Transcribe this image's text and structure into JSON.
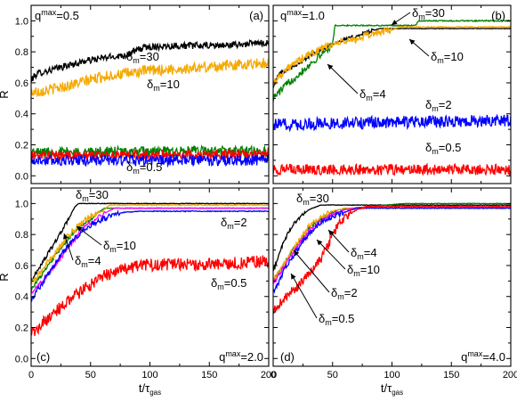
{
  "chart_data": [
    {
      "panel_label": "(a)",
      "qmax_label": {
        "base": "q",
        "sup": "max",
        "tail": "=0.5"
      },
      "type": "line",
      "ylabel": "R̃",
      "xlabel": "",
      "xlim": [
        0,
        200
      ],
      "ylim": [
        -0.05,
        1.1
      ],
      "xticks": [
        0,
        50,
        100,
        150,
        200
      ],
      "xtick_labels": [
        "",
        "",
        "",
        "",
        ""
      ],
      "yticks": [
        0.0,
        0.2,
        0.4,
        0.6,
        0.8,
        1.0
      ],
      "ytick_labels": [
        "0.0",
        "0.2",
        "0.4",
        "0.6",
        "0.8",
        "1.0"
      ],
      "series": [
        {
          "name": "δm=30",
          "color": "#000000",
          "noise": 0.022,
          "points": [
            [
              0,
              0.62
            ],
            [
              5,
              0.66
            ],
            [
              15,
              0.68
            ],
            [
              30,
              0.71
            ],
            [
              45,
              0.74
            ],
            [
              60,
              0.76
            ],
            [
              80,
              0.78
            ],
            [
              95,
              0.83
            ],
            [
              120,
              0.84
            ],
            [
              160,
              0.84
            ],
            [
              200,
              0.86
            ]
          ]
        },
        {
          "name": "δm=10",
          "color": "#f5a900",
          "noise": 0.035,
          "points": [
            [
              0,
              0.54
            ],
            [
              10,
              0.55
            ],
            [
              25,
              0.57
            ],
            [
              40,
              0.6
            ],
            [
              60,
              0.64
            ],
            [
              80,
              0.66
            ],
            [
              100,
              0.68
            ],
            [
              130,
              0.69
            ],
            [
              160,
              0.71
            ],
            [
              200,
              0.73
            ]
          ]
        },
        {
          "name": "",
          "color": "#008000",
          "noise": 0.035,
          "points": [
            [
              0,
              0.15
            ],
            [
              200,
              0.16
            ]
          ]
        },
        {
          "name": "",
          "color": "#ff0000",
          "noise": 0.03,
          "points": [
            [
              0,
              0.13
            ],
            [
              200,
              0.14
            ]
          ]
        },
        {
          "name": "δm=0.5",
          "color": "#0000ff",
          "noise": 0.035,
          "points": [
            [
              0,
              0.1
            ],
            [
              200,
              0.1
            ]
          ]
        }
      ],
      "annotations": [
        {
          "sub": "m",
          "value": "=30"
        },
        {
          "sub": "m",
          "value": "=10"
        },
        {
          "sub": "m",
          "value": "=0.5"
        }
      ]
    },
    {
      "panel_label": "(b)",
      "qmax_label": {
        "base": "q",
        "sup": "max",
        "tail": "=1.0"
      },
      "type": "line",
      "ylabel": "",
      "xlabel": "",
      "xlim": [
        0,
        200
      ],
      "ylim": [
        -0.05,
        1.1
      ],
      "xticks": [
        0,
        50,
        100,
        150,
        200
      ],
      "xtick_labels": [
        "",
        "",
        "",
        "",
        ""
      ],
      "yticks": [
        0.0,
        0.2,
        0.4,
        0.6,
        0.8,
        1.0
      ],
      "ytick_labels": [
        "",
        "",
        "",
        "",
        "",
        ""
      ],
      "series": [
        {
          "name": "δm=30",
          "color": "#000000",
          "noise": 0.012,
          "points": [
            [
              0,
              0.58
            ],
            [
              5,
              0.66
            ],
            [
              15,
              0.7
            ],
            [
              25,
              0.74
            ],
            [
              35,
              0.8
            ],
            [
              45,
              0.83
            ],
            [
              55,
              0.87
            ],
            [
              70,
              0.9
            ],
            [
              80,
              0.93
            ],
            [
              90,
              0.95
            ],
            [
              200,
              0.95
            ]
          ]
        },
        {
          "name": "",
          "color": "#008000",
          "noise": 0.025,
          "points": [
            [
              0,
              0.5
            ],
            [
              10,
              0.58
            ],
            [
              25,
              0.68
            ],
            [
              40,
              0.78
            ],
            [
              50,
              0.85
            ],
            [
              52,
              0.97
            ],
            [
              120,
              0.97
            ],
            [
              122,
              1.0
            ],
            [
              200,
              1.0
            ]
          ]
        },
        {
          "name": "δm=10",
          "color": "#f5a900",
          "noise": 0.025,
          "points": [
            [
              0,
              0.6
            ],
            [
              10,
              0.68
            ],
            [
              25,
              0.76
            ],
            [
              40,
              0.82
            ],
            [
              55,
              0.86
            ],
            [
              70,
              0.88
            ],
            [
              85,
              0.92
            ],
            [
              100,
              0.94
            ],
            [
              106,
              0.96
            ],
            [
              200,
              0.96
            ]
          ]
        },
        {
          "name": "δm=2",
          "color": "#0000ff",
          "noise": 0.04,
          "points": [
            [
              0,
              0.33
            ],
            [
              60,
              0.34
            ],
            [
              140,
              0.35
            ],
            [
              200,
              0.36
            ]
          ]
        },
        {
          "name": "δm=0.5",
          "color": "#ff0000",
          "noise": 0.035,
          "points": [
            [
              0,
              0.04
            ],
            [
              200,
              0.04
            ]
          ]
        }
      ],
      "annotations": [
        {
          "sub": "m",
          "value": "=30"
        },
        {
          "sub": "m",
          "value": "=4"
        },
        {
          "sub": "m",
          "value": "=10"
        },
        {
          "sub": "m",
          "value": "=2"
        },
        {
          "sub": "m",
          "value": "=0.5"
        }
      ]
    },
    {
      "panel_label": "(c)",
      "qmax_label": {
        "base": "q",
        "sup": "max",
        "tail": "=2.0"
      },
      "type": "line",
      "ylabel": "R̃",
      "xlabel": "",
      "xlim": [
        0,
        200
      ],
      "ylim": [
        -0.05,
        1.1
      ],
      "xticks": [
        0,
        50,
        100,
        150,
        200
      ],
      "xtick_labels": [
        "0",
        "50",
        "100",
        "150",
        "200"
      ],
      "yticks": [
        0.0,
        0.2,
        0.4,
        0.6,
        0.8,
        1.0
      ],
      "ytick_labels": [
        "0.0",
        "0.2",
        "0.4",
        "0.6",
        "0.8",
        "1.0"
      ],
      "series": [
        {
          "name": "δm=30",
          "color": "#000000",
          "noise": 0.012,
          "points": [
            [
              0,
              0.5
            ],
            [
              8,
              0.6
            ],
            [
              16,
              0.7
            ],
            [
              24,
              0.8
            ],
            [
              30,
              0.88
            ],
            [
              34,
              0.94
            ],
            [
              37,
              0.98
            ],
            [
              40,
              1.0
            ],
            [
              200,
              1.0
            ]
          ]
        },
        {
          "name": "",
          "color": "#008000",
          "noise": 0.012,
          "points": [
            [
              0,
              0.45
            ],
            [
              10,
              0.55
            ],
            [
              20,
              0.66
            ],
            [
              30,
              0.76
            ],
            [
              40,
              0.85
            ],
            [
              50,
              0.9
            ],
            [
              58,
              0.95
            ],
            [
              62,
              0.97
            ],
            [
              200,
              0.97
            ]
          ]
        },
        {
          "name": "δm=10",
          "color": "#f5a900",
          "noise": 0.02,
          "points": [
            [
              0,
              0.48
            ],
            [
              10,
              0.58
            ],
            [
              20,
              0.68
            ],
            [
              30,
              0.78
            ],
            [
              40,
              0.86
            ],
            [
              50,
              0.92
            ],
            [
              60,
              0.95
            ],
            [
              66,
              0.99
            ],
            [
              200,
              0.99
            ]
          ]
        },
        {
          "name": "δm=4",
          "color": "#ff00ff",
          "noise": 0.012,
          "points": [
            [
              0,
              0.42
            ],
            [
              15,
              0.55
            ],
            [
              30,
              0.7
            ],
            [
              45,
              0.85
            ],
            [
              60,
              0.93
            ],
            [
              70,
              0.97
            ],
            [
              200,
              0.97
            ]
          ]
        },
        {
          "name": "δm=2",
          "color": "#0000ff",
          "noise": 0.018,
          "points": [
            [
              0,
              0.38
            ],
            [
              15,
              0.55
            ],
            [
              30,
              0.72
            ],
            [
              45,
              0.84
            ],
            [
              60,
              0.9
            ],
            [
              75,
              0.94
            ],
            [
              90,
              0.95
            ],
            [
              200,
              0.95
            ]
          ]
        },
        {
          "name": "δm=0.5",
          "color": "#ff0000",
          "noise": 0.04,
          "points": [
            [
              0,
              0.15
            ],
            [
              10,
              0.23
            ],
            [
              20,
              0.3
            ],
            [
              30,
              0.36
            ],
            [
              45,
              0.45
            ],
            [
              60,
              0.53
            ],
            [
              75,
              0.57
            ],
            [
              90,
              0.6
            ],
            [
              120,
              0.61
            ],
            [
              160,
              0.61
            ],
            [
              200,
              0.63
            ]
          ]
        }
      ],
      "annotations": [
        {
          "sub": "m",
          "value": "=30"
        },
        {
          "sub": "m",
          "value": "=2"
        },
        {
          "sub": "m",
          "value": "=10"
        },
        {
          "sub": "m",
          "value": "=4"
        },
        {
          "sub": "m",
          "value": "=0.5"
        }
      ]
    },
    {
      "panel_label": "(d)",
      "qmax_label": {
        "base": "q",
        "sup": "max",
        "tail": "=4.0"
      },
      "type": "line",
      "ylabel": "",
      "xlabel": "t/τ",
      "xlabel_sub": "gas",
      "xlim": [
        0,
        200
      ],
      "ylim": [
        -0.05,
        1.1
      ],
      "xticks": [
        0,
        50,
        100,
        150,
        200
      ],
      "xtick_labels": [
        "0",
        "50",
        "100",
        "150",
        "200"
      ],
      "yticks": [
        0.0,
        0.2,
        0.4,
        0.6,
        0.8,
        1.0
      ],
      "ytick_labels": [
        "",
        "",
        "",
        "",
        "",
        ""
      ],
      "series": [
        {
          "name": "δm=30",
          "color": "#000000",
          "noise": 0.012,
          "points": [
            [
              0,
              0.56
            ],
            [
              6,
              0.7
            ],
            [
              12,
              0.8
            ],
            [
              18,
              0.88
            ],
            [
              24,
              0.92
            ],
            [
              30,
              0.96
            ],
            [
              40,
              0.99
            ],
            [
              200,
              0.99
            ]
          ]
        },
        {
          "name": "",
          "color": "#008000",
          "noise": 0.012,
          "points": [
            [
              0,
              0.5
            ],
            [
              10,
              0.62
            ],
            [
              20,
              0.74
            ],
            [
              30,
              0.84
            ],
            [
              40,
              0.9
            ],
            [
              55,
              0.96
            ],
            [
              80,
              0.98
            ],
            [
              110,
              1.0
            ],
            [
              200,
              1.0
            ]
          ]
        },
        {
          "name": "δm=10",
          "color": "#f5a900",
          "noise": 0.018,
          "points": [
            [
              0,
              0.5
            ],
            [
              10,
              0.62
            ],
            [
              20,
              0.74
            ],
            [
              30,
              0.85
            ],
            [
              40,
              0.91
            ],
            [
              50,
              0.95
            ],
            [
              60,
              0.97
            ],
            [
              200,
              0.97
            ]
          ]
        },
        {
          "name": "δm=4",
          "color": "#ff00ff",
          "noise": 0.012,
          "points": [
            [
              0,
              0.48
            ],
            [
              10,
              0.6
            ],
            [
              20,
              0.72
            ],
            [
              30,
              0.82
            ],
            [
              40,
              0.89
            ],
            [
              50,
              0.93
            ],
            [
              60,
              0.96
            ],
            [
              80,
              0.98
            ],
            [
              200,
              0.98
            ]
          ]
        },
        {
          "name": "δm=2",
          "color": "#0000ff",
          "noise": 0.016,
          "points": [
            [
              0,
              0.42
            ],
            [
              10,
              0.58
            ],
            [
              20,
              0.7
            ],
            [
              30,
              0.8
            ],
            [
              40,
              0.88
            ],
            [
              55,
              0.93
            ],
            [
              70,
              0.97
            ],
            [
              200,
              0.97
            ]
          ]
        },
        {
          "name": "δm=0.5",
          "color": "#ff0000",
          "noise": 0.03,
          "points": [
            [
              0,
              0.3
            ],
            [
              10,
              0.4
            ],
            [
              20,
              0.46
            ],
            [
              30,
              0.54
            ],
            [
              40,
              0.64
            ],
            [
              48,
              0.76
            ],
            [
              55,
              0.87
            ],
            [
              62,
              0.92
            ],
            [
              70,
              0.96
            ],
            [
              80,
              0.98
            ],
            [
              200,
              0.98
            ]
          ]
        }
      ],
      "annotations": [
        {
          "sub": "m",
          "value": "=30"
        },
        {
          "sub": "m",
          "value": "=4"
        },
        {
          "sub": "m",
          "value": "=10"
        },
        {
          "sub": "m",
          "value": "=2"
        },
        {
          "sub": "m",
          "value": "=0.5"
        }
      ]
    }
  ]
}
